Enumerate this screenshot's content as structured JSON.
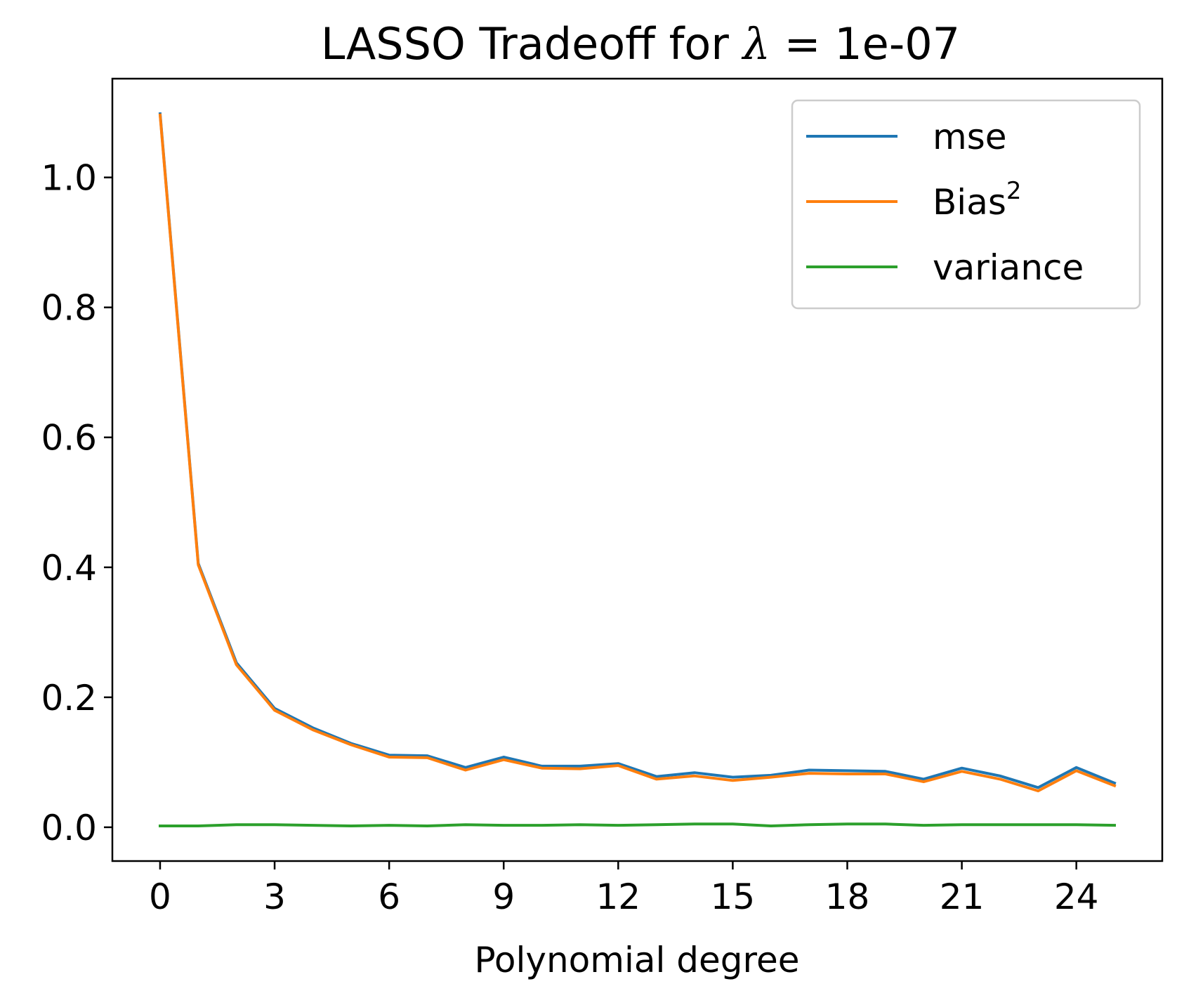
{
  "chart_data": {
    "type": "line",
    "title_prefix": "LASSO Tradeoff for ",
    "title_symbol": "λ",
    "title_suffix": " =  1e-07",
    "xlabel": "Polynomial degree",
    "ylabel": "",
    "xlim": [
      -1.25,
      26.25
    ],
    "ylim": [
      -0.052,
      1.152
    ],
    "xticks": [
      0,
      3,
      6,
      9,
      12,
      15,
      18,
      21,
      24
    ],
    "xtick_labels": [
      "0",
      "3",
      "6",
      "9",
      "12",
      "15",
      "18",
      "21",
      "24"
    ],
    "yticks": [
      0.0,
      0.2,
      0.4,
      0.6,
      0.8,
      1.0
    ],
    "ytick_labels": [
      "0.0",
      "0.2",
      "0.4",
      "0.6",
      "0.8",
      "1.0"
    ],
    "grid": false,
    "legend_position": "upper-right",
    "x": [
      0,
      1,
      2,
      3,
      4,
      5,
      6,
      7,
      8,
      9,
      10,
      11,
      12,
      13,
      14,
      15,
      16,
      17,
      18,
      19,
      20,
      21,
      22,
      23,
      24,
      25
    ],
    "series": [
      {
        "name": "mse",
        "color": "#1f77b4",
        "values": [
          1.098,
          0.406,
          0.253,
          0.183,
          0.153,
          0.129,
          0.111,
          0.11,
          0.092,
          0.108,
          0.094,
          0.094,
          0.098,
          0.078,
          0.084,
          0.077,
          0.08,
          0.088,
          0.087,
          0.086,
          0.074,
          0.091,
          0.079,
          0.061,
          0.092,
          0.068
        ]
      },
      {
        "name": "Bias",
        "name_superscript": "2",
        "color": "#ff7f0e",
        "values": [
          1.096,
          0.404,
          0.25,
          0.18,
          0.15,
          0.127,
          0.108,
          0.107,
          0.088,
          0.104,
          0.091,
          0.09,
          0.095,
          0.074,
          0.079,
          0.072,
          0.077,
          0.083,
          0.082,
          0.082,
          0.07,
          0.086,
          0.074,
          0.056,
          0.087,
          0.064
        ]
      },
      {
        "name": "variance",
        "color": "#2ca02c",
        "values": [
          0.002,
          0.002,
          0.004,
          0.004,
          0.003,
          0.002,
          0.003,
          0.002,
          0.004,
          0.003,
          0.003,
          0.004,
          0.003,
          0.004,
          0.005,
          0.005,
          0.002,
          0.004,
          0.005,
          0.005,
          0.003,
          0.004,
          0.004,
          0.004,
          0.004,
          0.003
        ]
      }
    ]
  }
}
